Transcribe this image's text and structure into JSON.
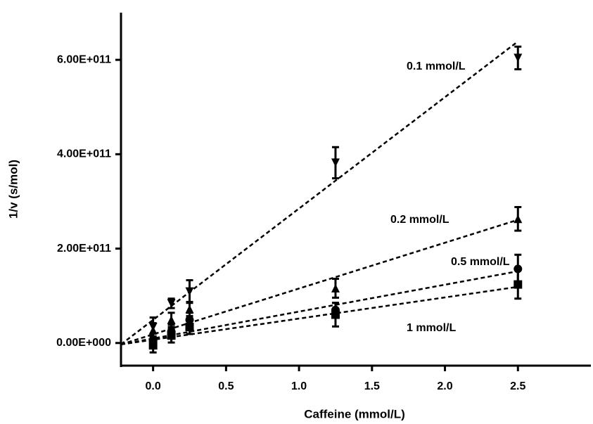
{
  "chart_data": {
    "type": "scatter",
    "x_label": "Caffeine (mmol/L)",
    "y_label": "1/v (s/mol)",
    "xlim": [
      -0.22,
      3.0
    ],
    "ylim": [
      -48000000000.0,
      700000000000.0
    ],
    "xticks": [
      {
        "value": 0,
        "label": "0.0"
      },
      0.5,
      {
        "value": 1,
        "label": "1.0"
      },
      1.5,
      {
        "value": 2,
        "label": "2.0"
      },
      2.5
    ],
    "yticks": [
      {
        "value": 0,
        "label": "0.00E+000"
      },
      {
        "value": 200000000000.0,
        "label": "2.00E+011"
      },
      {
        "value": 400000000000.0,
        "label": "4.00E+011"
      },
      {
        "value": 600000000000.0,
        "label": "6.00E+011"
      }
    ],
    "x": [
      0,
      0.125,
      0.25,
      1.25,
      2.5
    ],
    "fit_x": [
      -0.22,
      2.5
    ],
    "series": [
      {
        "name": "0.1 mmol/L",
        "color": "#000000",
        "marker": "triangle-down",
        "values": [
          34000000000.0,
          84000000000.0,
          109000000000.0,
          382000000000.0,
          604000000000.0
        ],
        "errors": [
          20000000000.0,
          10000000000.0,
          24000000000.0,
          33000000000.0,
          24000000000.0
        ],
        "fit": [
          -3000000000.0,
          639000000000.0
        ]
      },
      {
        "name": "0.2 mmol/L",
        "color": "#000000",
        "marker": "triangle-up",
        "values": [
          27000000000.0,
          49000000000.0,
          72000000000.0,
          116000000000.0,
          263000000000.0
        ],
        "errors": [
          15000000000.0,
          15000000000.0,
          15000000000.0,
          20000000000.0,
          25000000000.0
        ],
        "fit": [
          -3000000000.0,
          261000000000.0
        ]
      },
      {
        "name": "0.5 mmol/L",
        "color": "#000000",
        "marker": "circle",
        "values": [
          5000000000.0,
          24000000000.0,
          49000000000.0,
          70000000000.0,
          157000000000.0
        ],
        "errors": [
          15000000000.0,
          15000000000.0,
          15000000000.0,
          15000000000.0,
          30000000000.0
        ],
        "fit": [
          -3000000000.0,
          152000000000.0
        ]
      },
      {
        "name": "1 mmol/L",
        "color": "#000000",
        "marker": "square",
        "values": [
          -5000000000.0,
          16000000000.0,
          34000000000.0,
          60000000000.0,
          124000000000.0
        ],
        "errors": [
          15000000000.0,
          15000000000.0,
          15000000000.0,
          25000000000.0,
          30000000000.0
        ],
        "fit": [
          -3000000000.0,
          119000000000.0
        ]
      }
    ]
  }
}
